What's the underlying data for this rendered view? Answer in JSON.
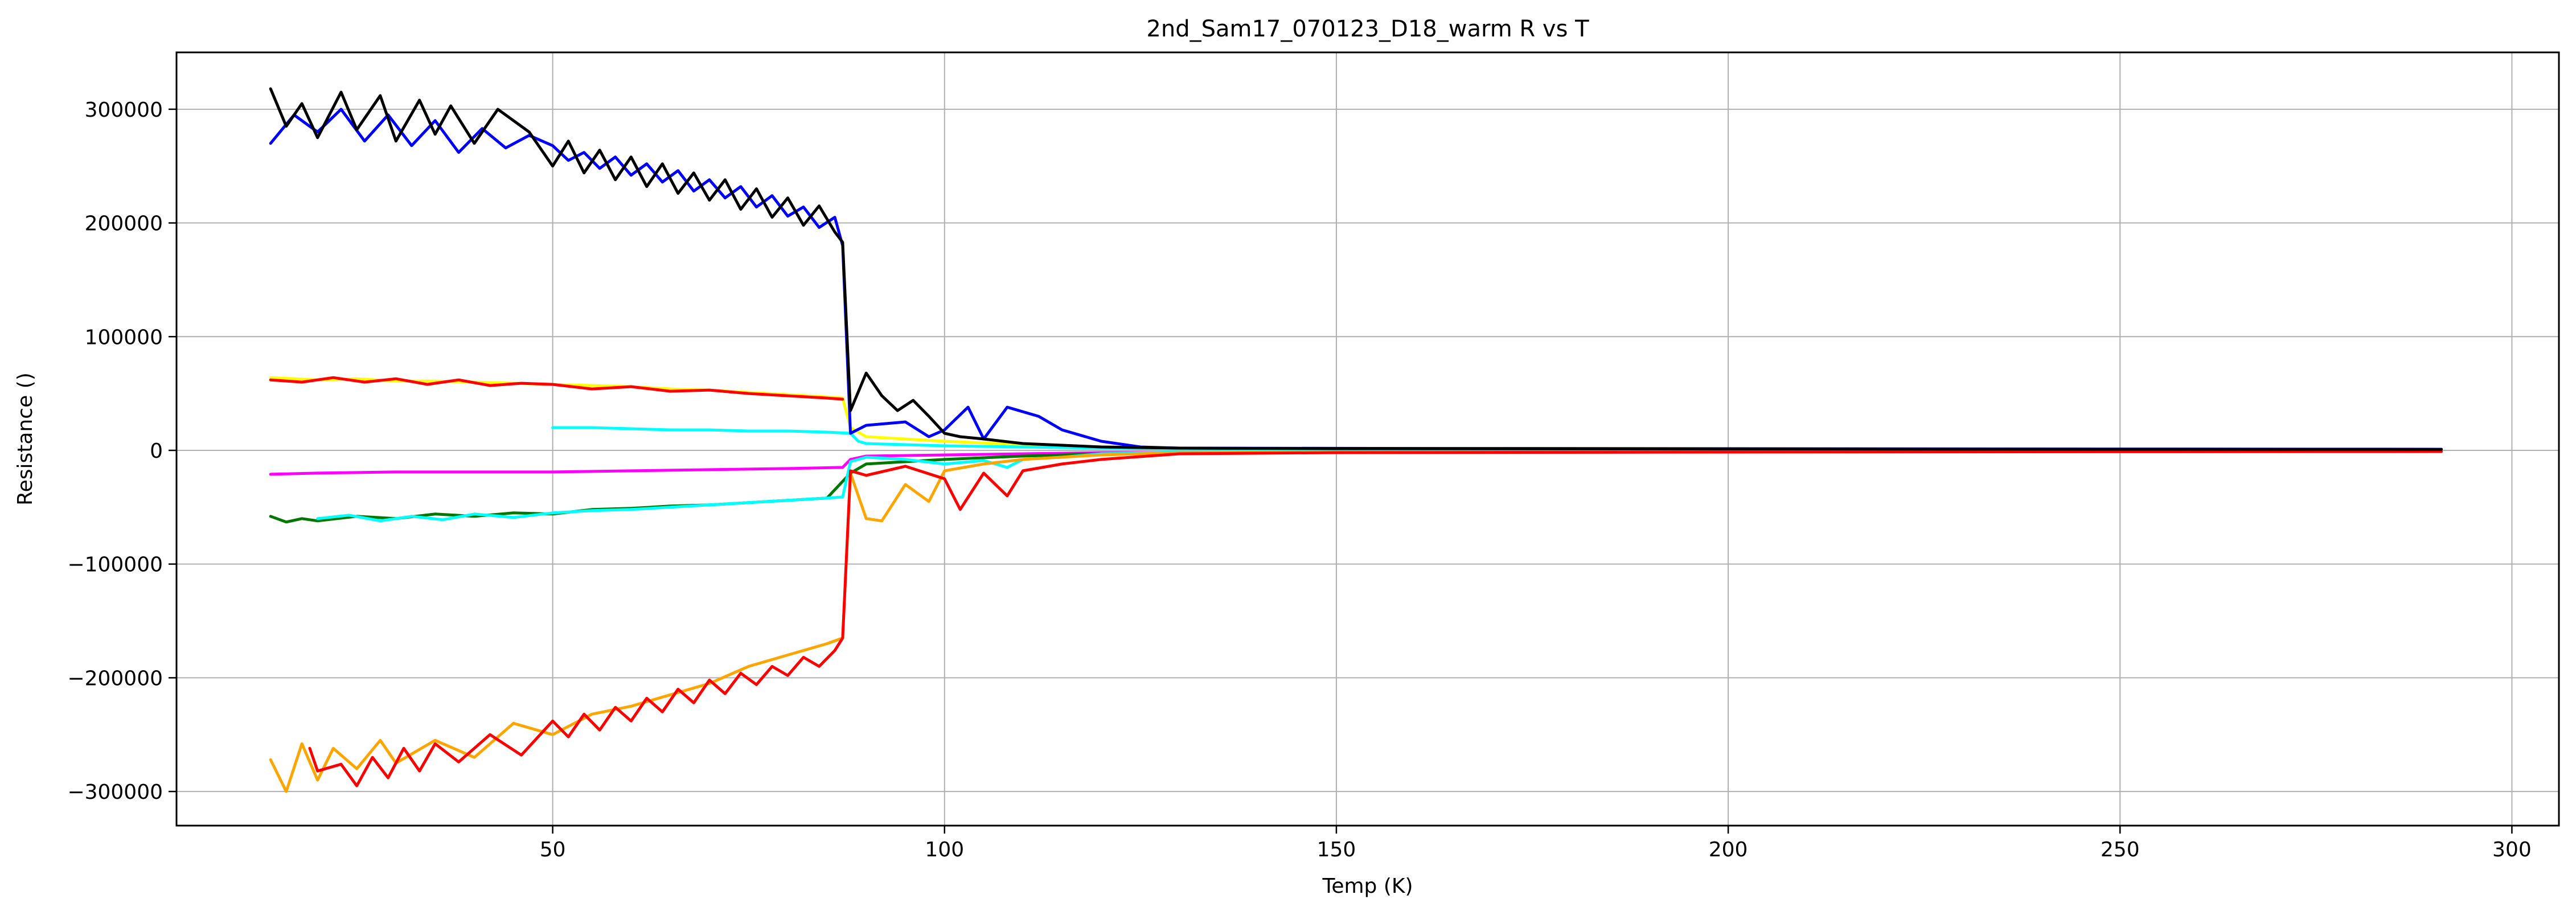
{
  "chart_data": {
    "type": "line",
    "title": "2nd_Sam17_070123_D18_warm R vs T",
    "xlabel": "Temp (K)",
    "ylabel": "Resistance ()",
    "xlim": [
      2,
      306
    ],
    "ylim": [
      -330000,
      350000
    ],
    "xticks": [
      50,
      100,
      150,
      200,
      250,
      300
    ],
    "yticks": [
      -300000,
      -200000,
      -100000,
      0,
      100000,
      200000,
      300000
    ],
    "ytick_labels": [
      "−300000",
      "−200000",
      "−100000",
      "0",
      "100000",
      "200000",
      "300000"
    ],
    "grid": true,
    "legend": "none",
    "series": [
      {
        "color": "#ffff00",
        "x": [
          14,
          20,
          25,
          30,
          35,
          40,
          45,
          50,
          55,
          60,
          65,
          70,
          75,
          80,
          85,
          87,
          88,
          90,
          95,
          100,
          110,
          120,
          130,
          150,
          200,
          250,
          291
        ],
        "y": [
          64000,
          62000,
          63000,
          61000,
          61000,
          60000,
          59000,
          58000,
          57000,
          56000,
          54000,
          53000,
          51000,
          49000,
          47000,
          46000,
          20000,
          12000,
          10000,
          8000,
          5000,
          3000,
          2000,
          1500,
          1200,
          1000,
          900
        ]
      },
      {
        "color": "#ff0000",
        "x": [
          14,
          18,
          22,
          26,
          30,
          34,
          38,
          42,
          46,
          50,
          55,
          60,
          65,
          70,
          75,
          80,
          85,
          87
        ],
        "y": [
          62000,
          60000,
          64000,
          60000,
          63000,
          58000,
          62000,
          57000,
          59000,
          58000,
          54000,
          56000,
          52000,
          53000,
          50000,
          48000,
          46000,
          45000
        ]
      },
      {
        "color": "#00ffff",
        "x": [
          50,
          55,
          60,
          65,
          70,
          75,
          80,
          85,
          88,
          89,
          90,
          95,
          100,
          110,
          120,
          130,
          150,
          200,
          250,
          291
        ],
        "y": [
          20000,
          20000,
          19000,
          18000,
          18000,
          17000,
          17000,
          16000,
          15000,
          8000,
          6000,
          5000,
          4000,
          3000,
          2000,
          1500,
          1000,
          800,
          700,
          600
        ]
      },
      {
        "color": "#ff00ff",
        "x": [
          14,
          20,
          30,
          40,
          50,
          60,
          70,
          80,
          87,
          88,
          90,
          100,
          120,
          150,
          200,
          250,
          291
        ],
        "y": [
          -21000,
          -20000,
          -19000,
          -19000,
          -19000,
          -18000,
          -17000,
          -16000,
          -15000,
          -8000,
          -5000,
          -4000,
          -2000,
          -1500,
          -1000,
          -800,
          -700
        ]
      },
      {
        "color": "#007700",
        "x": [
          14,
          16,
          18,
          20,
          25,
          30,
          35,
          40,
          45,
          50,
          55,
          60,
          65,
          70,
          75,
          80,
          85,
          88,
          90,
          95,
          100,
          110,
          120
        ],
        "y": [
          -58000,
          -63000,
          -60000,
          -62000,
          -58000,
          -60000,
          -56000,
          -58000,
          -55000,
          -56000,
          -52000,
          -51000,
          -49000,
          -48000,
          -46000,
          -44000,
          -42000,
          -20000,
          -12000,
          -10000,
          -8000,
          -5000,
          -3000
        ]
      },
      {
        "color": "#00ffff",
        "x": [
          20,
          24,
          28,
          32,
          36,
          40,
          45,
          50,
          55,
          60,
          65,
          70,
          75,
          80,
          85,
          87,
          88,
          90,
          95,
          100,
          105,
          108,
          110,
          115,
          120,
          130,
          150,
          200,
          250,
          291
        ],
        "y": [
          -60000,
          -57000,
          -62000,
          -58000,
          -61000,
          -56000,
          -59000,
          -55000,
          -53000,
          -52000,
          -50000,
          -48000,
          -46000,
          -44000,
          -42000,
          -41000,
          -10000,
          -6000,
          -8000,
          -12000,
          -9000,
          -15000,
          -8000,
          -6000,
          -3000,
          -1500,
          -1000,
          -800,
          -600,
          -500
        ]
      },
      {
        "color": "#ffa500",
        "x": [
          14,
          16,
          18,
          20,
          22,
          25,
          28,
          30,
          35,
          40,
          45,
          50,
          55,
          60,
          65,
          70,
          75,
          80,
          85,
          87,
          88,
          90,
          92,
          95,
          98,
          100,
          105,
          110,
          120,
          130,
          150,
          200,
          250,
          291
        ],
        "y": [
          -272000,
          -300000,
          -258000,
          -290000,
          -262000,
          -280000,
          -255000,
          -275000,
          -255000,
          -270000,
          -240000,
          -250000,
          -232000,
          -225000,
          -215000,
          -205000,
          -190000,
          -180000,
          -170000,
          -165000,
          -20000,
          -60000,
          -62000,
          -30000,
          -45000,
          -18000,
          -12000,
          -8000,
          -4000,
          -2000,
          -1500,
          -1200,
          -1000,
          -900
        ]
      },
      {
        "color": "#ff0000",
        "x": [
          19,
          20,
          23,
          25,
          27,
          29,
          31,
          33,
          35,
          38,
          42,
          46,
          50,
          52,
          54,
          56,
          58,
          60,
          62,
          64,
          66,
          68,
          70,
          72,
          74,
          76,
          78,
          80,
          82,
          84,
          86,
          87,
          88,
          90,
          95,
          100,
          102,
          105,
          108,
          110,
          115,
          120,
          130,
          150,
          200,
          250,
          291
        ],
        "y": [
          -262000,
          -282000,
          -276000,
          -295000,
          -270000,
          -288000,
          -262000,
          -282000,
          -258000,
          -274000,
          -250000,
          -268000,
          -238000,
          -252000,
          -232000,
          -246000,
          -226000,
          -238000,
          -218000,
          -230000,
          -210000,
          -222000,
          -202000,
          -214000,
          -196000,
          -206000,
          -190000,
          -198000,
          -182000,
          -190000,
          -176000,
          -165000,
          -18000,
          -22000,
          -14000,
          -25000,
          -52000,
          -20000,
          -40000,
          -18000,
          -12000,
          -8000,
          -3000,
          -2000,
          -1500,
          -1200,
          -1000
        ]
      },
      {
        "color": "#0000ff",
        "x": [
          14,
          17,
          20,
          23,
          26,
          29,
          32,
          35,
          38,
          41,
          44,
          47,
          50,
          52,
          54,
          56,
          58,
          60,
          62,
          64,
          66,
          68,
          70,
          72,
          74,
          76,
          78,
          80,
          82,
          84,
          86,
          87,
          88,
          90,
          95,
          98,
          100,
          103,
          105,
          108,
          112,
          115,
          120,
          125,
          130,
          150,
          200,
          250,
          291
        ],
        "y": [
          270000,
          295000,
          280000,
          300000,
          272000,
          295000,
          268000,
          290000,
          262000,
          283000,
          266000,
          277000,
          268000,
          255000,
          262000,
          248000,
          258000,
          242000,
          252000,
          236000,
          246000,
          228000,
          238000,
          222000,
          232000,
          214000,
          224000,
          206000,
          214000,
          196000,
          205000,
          180000,
          15000,
          22000,
          25000,
          12000,
          18000,
          38000,
          10000,
          38000,
          30000,
          18000,
          8000,
          3000,
          2000,
          1800,
          1500,
          1200,
          1000
        ]
      },
      {
        "color": "#000000",
        "x": [
          14,
          16,
          18,
          20,
          23,
          25,
          28,
          30,
          33,
          35,
          37,
          40,
          43,
          47,
          50,
          52,
          54,
          56,
          58,
          60,
          62,
          64,
          66,
          68,
          70,
          72,
          74,
          76,
          78,
          80,
          82,
          84,
          86,
          87,
          88,
          90,
          92,
          94,
          96,
          98,
          100,
          102,
          105,
          110,
          120,
          130,
          150,
          200,
          250,
          291
        ],
        "y": [
          318000,
          285000,
          305000,
          275000,
          315000,
          282000,
          312000,
          272000,
          308000,
          278000,
          303000,
          270000,
          300000,
          280000,
          250000,
          272000,
          244000,
          264000,
          238000,
          258000,
          232000,
          252000,
          226000,
          244000,
          220000,
          238000,
          212000,
          230000,
          205000,
          222000,
          198000,
          215000,
          192000,
          183000,
          35000,
          68000,
          48000,
          35000,
          44000,
          30000,
          15000,
          12000,
          10000,
          6000,
          3000,
          2000,
          1500,
          1200,
          1000,
          900
        ]
      }
    ]
  }
}
